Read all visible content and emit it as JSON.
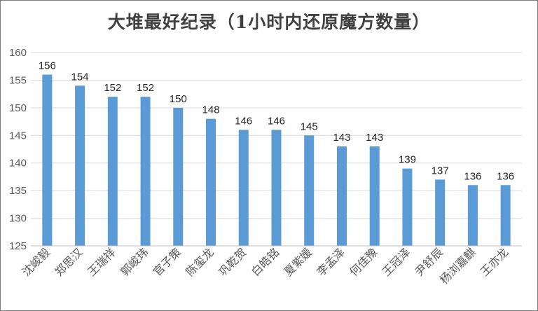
{
  "chart_data": {
    "type": "bar",
    "title": "大堆最好纪录（1小时内还原魔方数量）",
    "categories": [
      "沈峻毅",
      "郑思汉",
      "王瑞祥",
      "郭峻玮",
      "官子策",
      "陈玺龙",
      "巩乾贺",
      "白皓铭",
      "夏紫媛",
      "李孟泽",
      "何佳豫",
      "王冠泽",
      "尹舒辰",
      "杨浏嘉麒",
      "王亦龙"
    ],
    "values": [
      156,
      154,
      152,
      152,
      150,
      148,
      146,
      146,
      145,
      143,
      143,
      139,
      137,
      136,
      136
    ],
    "xlabel": "",
    "ylabel": "",
    "ylim": [
      125,
      160
    ],
    "yticks": [
      125,
      130,
      135,
      140,
      145,
      150,
      155,
      160
    ],
    "grid": true,
    "legend": "none",
    "bar_color": "#5b9bd5",
    "grid_color": "#d9d9d9"
  }
}
